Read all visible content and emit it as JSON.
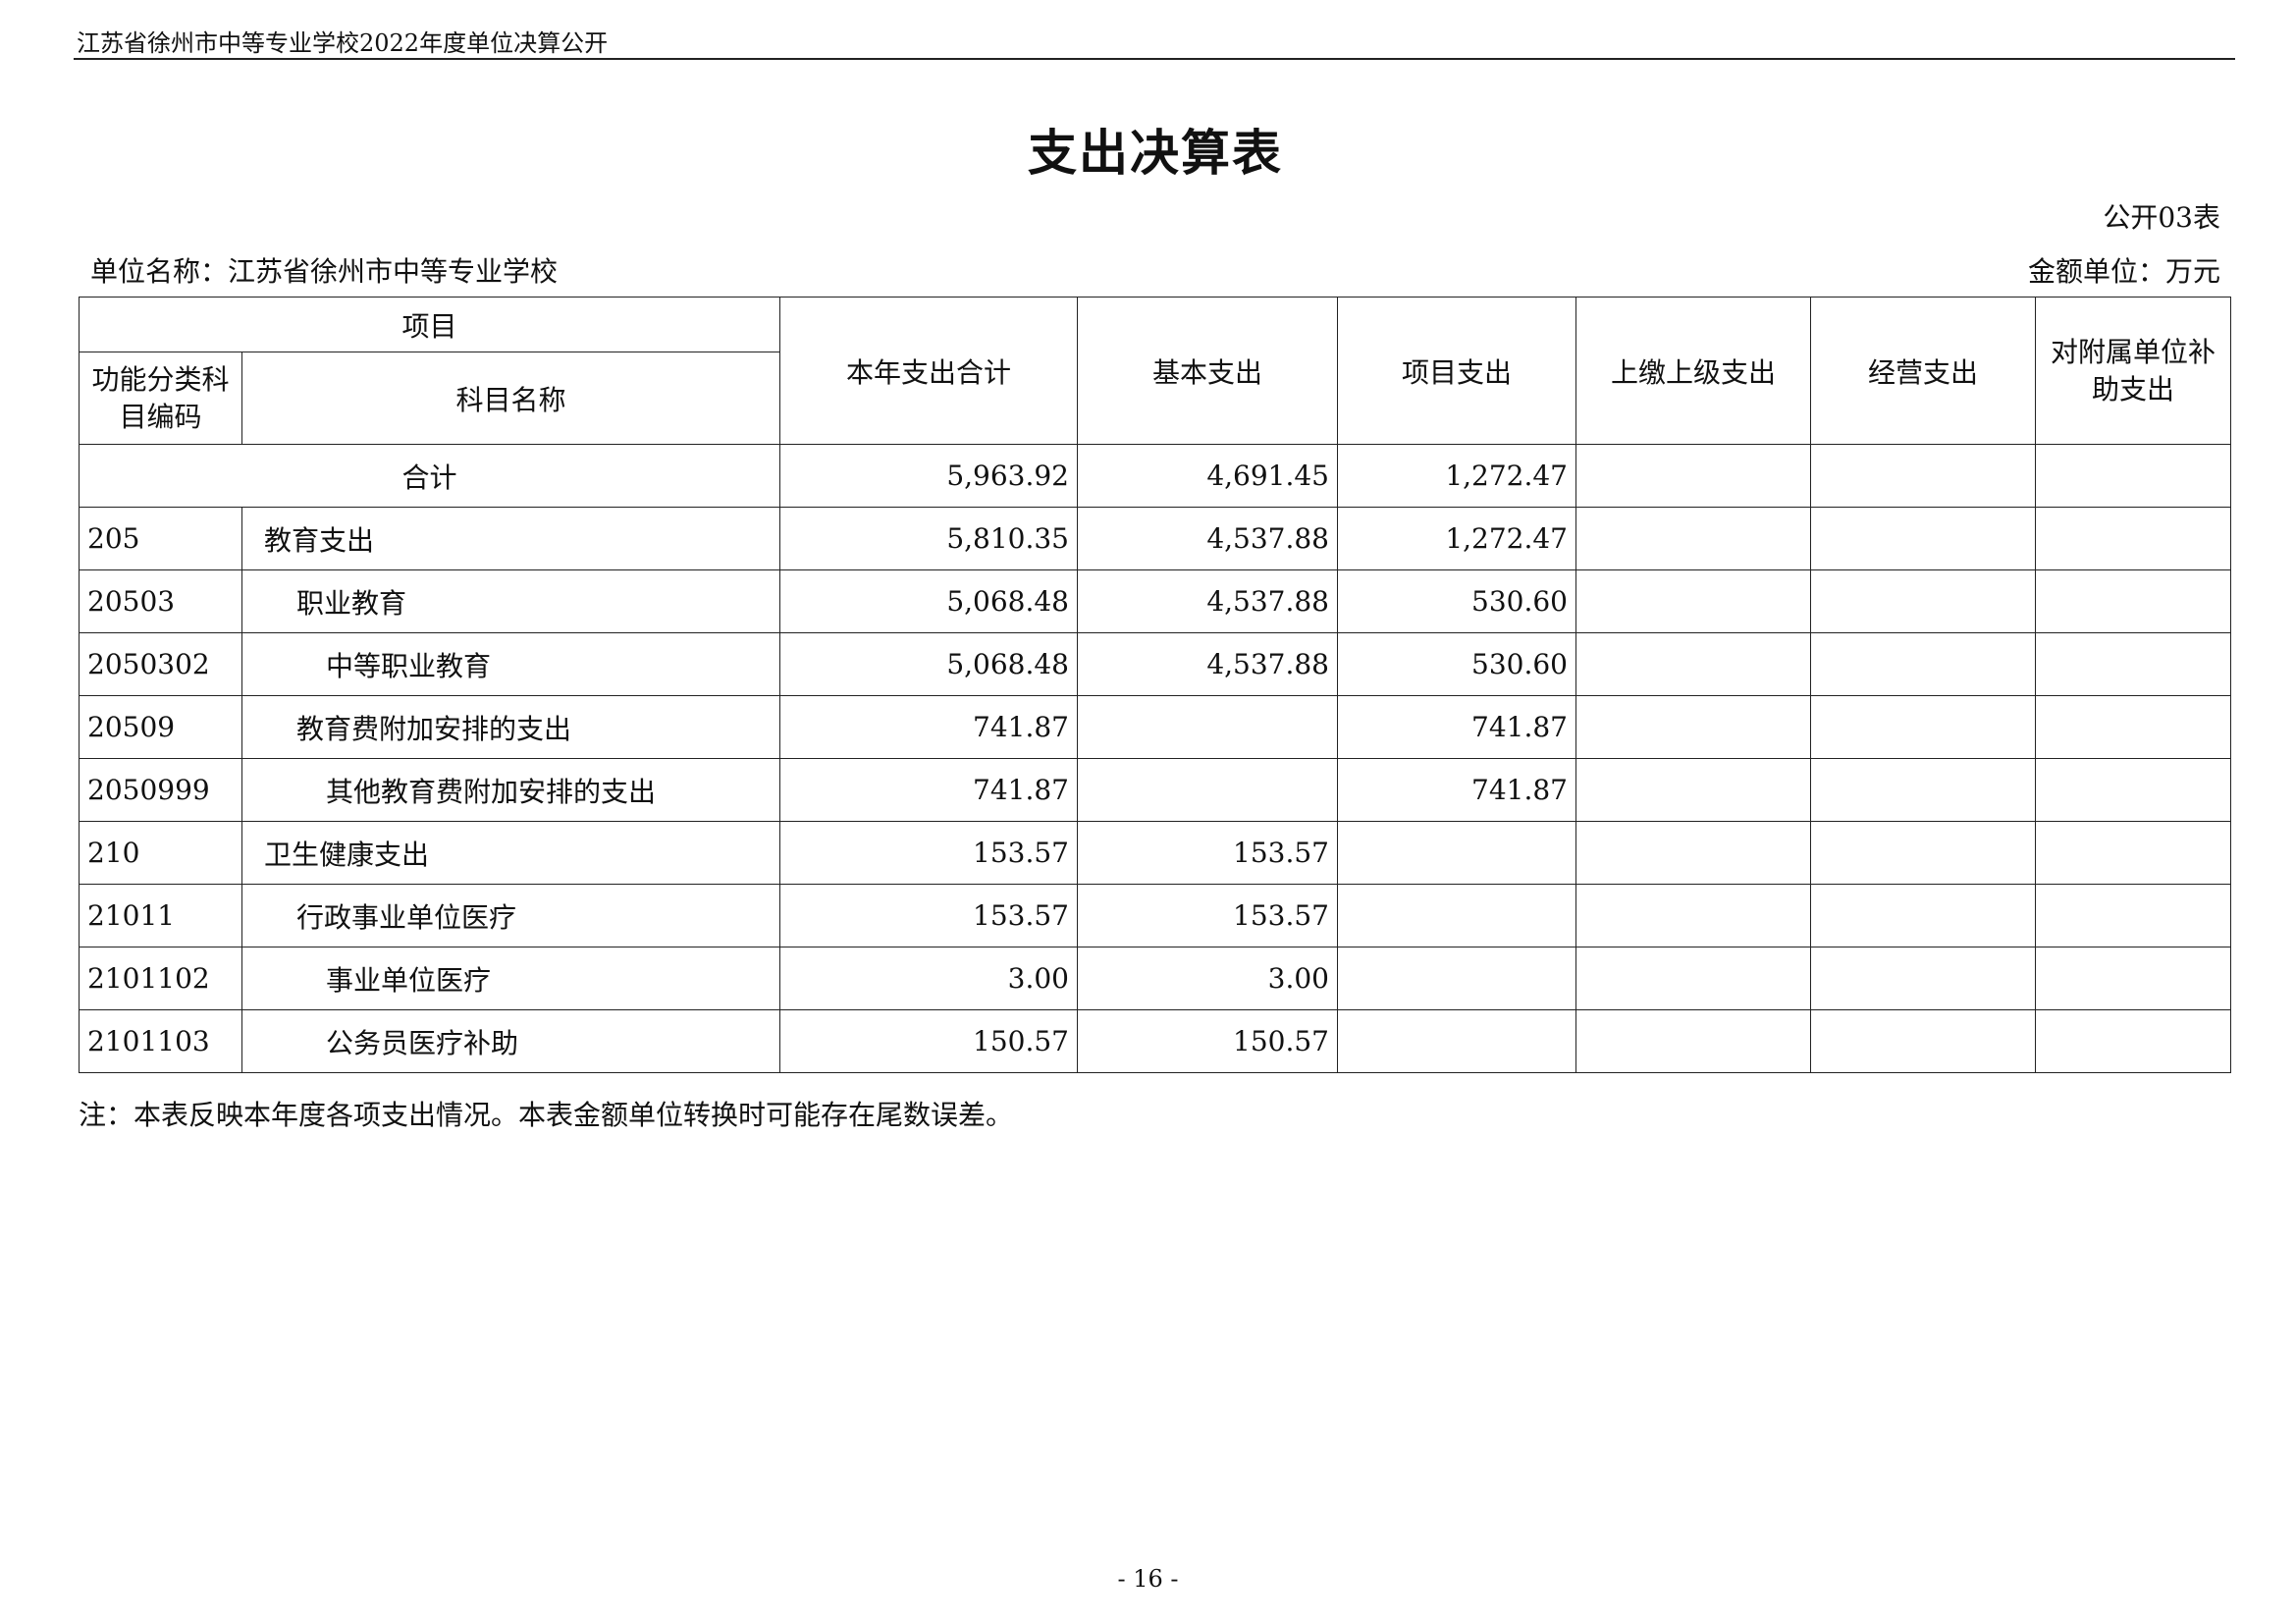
{
  "header_text": "江苏省徐州市中等专业学校2022年度单位决算公开",
  "title": "支出决算表",
  "form_no": "公开03表",
  "unit_label": "单位名称：江苏省徐州市中等专业学校",
  "money_unit": "金额单位：万元",
  "table": {
    "headers": {
      "item": "项目",
      "code": "功能分类科目编码",
      "name": "科目名称",
      "total": "本年支出合计",
      "basic": "基本支出",
      "project": "项目支出",
      "upper": "上缴上级支出",
      "business": "经营支出",
      "subsidy": "对附属单位补助支出"
    },
    "total_row": {
      "label": "合计",
      "total": "5,963.92",
      "basic": "4,691.45",
      "project": "1,272.47",
      "upper": "",
      "business": "",
      "subsidy": ""
    },
    "rows": [
      {
        "code": "205",
        "name": "教育支出",
        "level": 0,
        "total": "5,810.35",
        "basic": "4,537.88",
        "project": "1,272.47"
      },
      {
        "code": "20503",
        "name": "职业教育",
        "level": 1,
        "total": "5,068.48",
        "basic": "4,537.88",
        "project": "530.60"
      },
      {
        "code": "2050302",
        "name": "中等职业教育",
        "level": 2,
        "total": "5,068.48",
        "basic": "4,537.88",
        "project": "530.60"
      },
      {
        "code": "20509",
        "name": "教育费附加安排的支出",
        "level": 1,
        "total": "741.87",
        "basic": "",
        "project": "741.87"
      },
      {
        "code": "2050999",
        "name": "其他教育费附加安排的支出",
        "level": 2,
        "total": "741.87",
        "basic": "",
        "project": "741.87"
      },
      {
        "code": "210",
        "name": "卫生健康支出",
        "level": 0,
        "total": "153.57",
        "basic": "153.57",
        "project": ""
      },
      {
        "code": "21011",
        "name": "行政事业单位医疗",
        "level": 1,
        "total": "153.57",
        "basic": "153.57",
        "project": ""
      },
      {
        "code": "2101102",
        "name": "事业单位医疗",
        "level": 2,
        "total": "3.00",
        "basic": "3.00",
        "project": ""
      },
      {
        "code": "2101103",
        "name": "公务员医疗补助",
        "level": 2,
        "total": "150.57",
        "basic": "150.57",
        "project": ""
      }
    ]
  },
  "note": "注：本表反映本年度各项支出情况。本表金额单位转换时可能存在尾数误差。",
  "page_number": "- 16 -"
}
